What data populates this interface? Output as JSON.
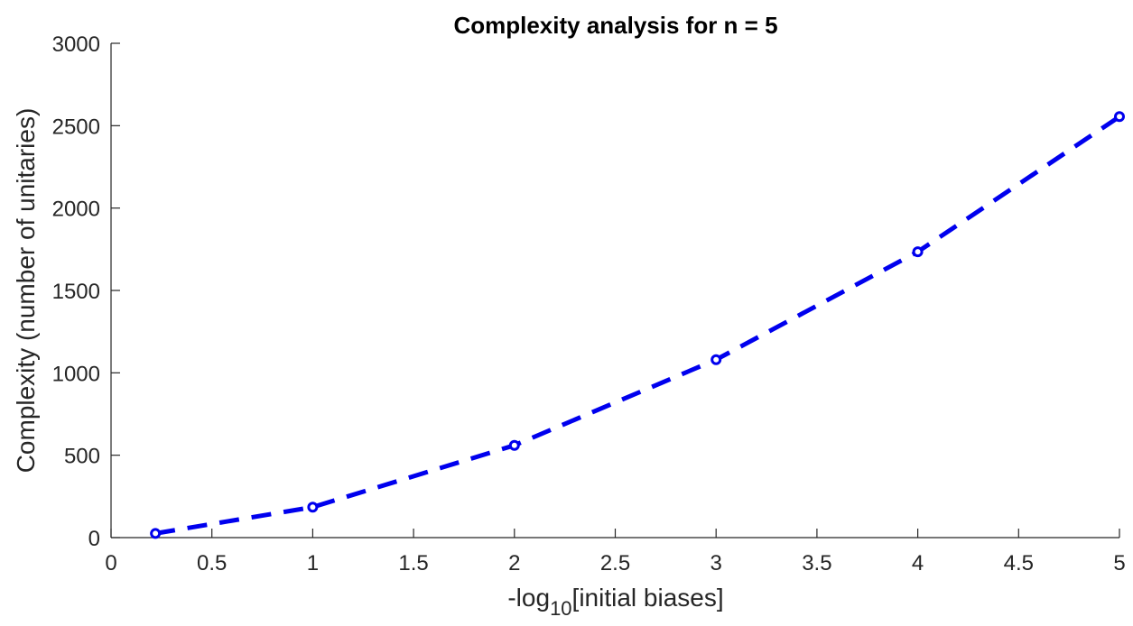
{
  "chart_data": {
    "type": "line",
    "title": "Complexity analysis for n = 5",
    "xlabel": {
      "prefix": "-log",
      "subscript": "10",
      "suffix": "[initial biases]"
    },
    "ylabel": "Complexity (number of unitaries)",
    "xlim": [
      0,
      5
    ],
    "ylim": [
      0,
      3000
    ],
    "xticks": [
      "0",
      "0.5",
      "1",
      "1.5",
      "2",
      "2.5",
      "3",
      "3.5",
      "4",
      "4.5",
      "5"
    ],
    "yticks": [
      "0",
      "500",
      "1000",
      "1500",
      "2000",
      "2500",
      "3000"
    ],
    "grid": false,
    "series": [
      {
        "x": [
          0.22,
          1,
          2,
          3,
          4,
          5
        ],
        "y": [
          25,
          185,
          560,
          1080,
          1735,
          2555
        ],
        "color": "#0000ee",
        "line_style": "dashed",
        "marker": "circle"
      }
    ]
  }
}
